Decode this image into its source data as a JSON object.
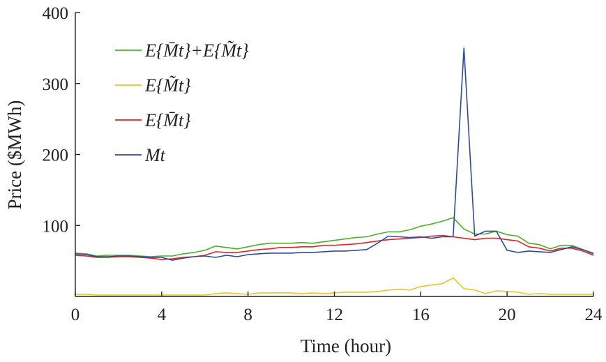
{
  "chart_data": {
    "type": "line",
    "xlabel": "Time (hour)",
    "ylabel": "Price ($MWh)",
    "xlim": [
      0,
      24
    ],
    "ylim": [
      0,
      400
    ],
    "xticks": [
      0,
      4,
      8,
      12,
      16,
      20,
      24
    ],
    "yticks": [
      100,
      200,
      300,
      400
    ],
    "grid": false,
    "legend_position": "top-left",
    "x": [
      0,
      0.5,
      1,
      1.5,
      2,
      2.5,
      3,
      3.5,
      4,
      4.5,
      5,
      5.5,
      6,
      6.5,
      7,
      7.5,
      8,
      8.5,
      9,
      9.5,
      10,
      10.5,
      11,
      11.5,
      12,
      12.5,
      13,
      13.5,
      14,
      14.5,
      15,
      15.5,
      16,
      16.5,
      17,
      17.5,
      18,
      18.5,
      19,
      19.5,
      20,
      20.5,
      21,
      21.5,
      22,
      22.5,
      23,
      23.5,
      24
    ],
    "series": [
      {
        "name": "E{M̄t}+E{M̃t}",
        "color": "#4caf28",
        "values": [
          61,
          60,
          57,
          58,
          58,
          58,
          57,
          56,
          57,
          57,
          60,
          62,
          65,
          71,
          69,
          67,
          70,
          73,
          75,
          75,
          75,
          76,
          75,
          77,
          79,
          81,
          83,
          84,
          88,
          91,
          91,
          94,
          99,
          102,
          106,
          111,
          95,
          88,
          88,
          92,
          87,
          85,
          75,
          73,
          67,
          72,
          72,
          66,
          61
        ]
      },
      {
        "name": "E{M̃t}",
        "color": "#e6c72a",
        "values": [
          3,
          3,
          2,
          2,
          2,
          2,
          2,
          2,
          2,
          2,
          2,
          2,
          2,
          4,
          5,
          4,
          3,
          5,
          5,
          5,
          5,
          4,
          5,
          4,
          5,
          6,
          6,
          6,
          7,
          9,
          10,
          9,
          14,
          16,
          18,
          26,
          11,
          9,
          4,
          8,
          7,
          6,
          3,
          4,
          3,
          3,
          3,
          3,
          3
        ]
      },
      {
        "name": "E{M̄t}",
        "color": "#e02525",
        "values": [
          58,
          57,
          55,
          55,
          56,
          56,
          55,
          54,
          52,
          53,
          55,
          56,
          58,
          63,
          62,
          62,
          64,
          66,
          67,
          69,
          69,
          70,
          70,
          72,
          72,
          73,
          74,
          76,
          78,
          80,
          81,
          82,
          83,
          85,
          86,
          84,
          82,
          80,
          82,
          82,
          80,
          78,
          70,
          68,
          64,
          68,
          68,
          64,
          58
        ]
      },
      {
        "name": "Mt",
        "color": "#2f4a9a",
        "values": [
          60,
          59,
          56,
          56,
          57,
          57,
          56,
          55,
          55,
          51,
          54,
          56,
          57,
          55,
          58,
          56,
          59,
          60,
          61,
          61,
          61,
          62,
          62,
          63,
          64,
          64,
          65,
          66,
          75,
          85,
          84,
          83,
          84,
          82,
          84,
          84,
          350,
          85,
          92,
          92,
          65,
          62,
          64,
          63,
          62,
          66,
          70,
          66,
          60
        ]
      }
    ]
  }
}
